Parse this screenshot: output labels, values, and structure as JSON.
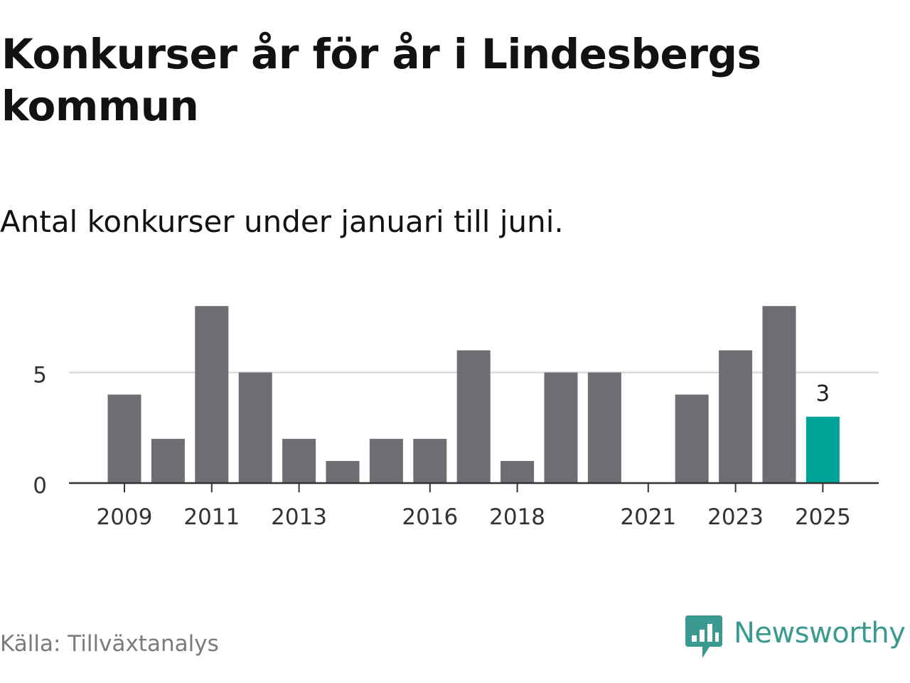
{
  "title": "Konkurser år för år i Lindesbergs kommun",
  "subtitle": "Antal konkurser under januari till juni.",
  "source": "Källa: Tillväxtanalys",
  "brand": {
    "name": "Newsworthy",
    "icon": "newsworthy-logo-icon",
    "color": "#3a9a8f"
  },
  "chart_data": {
    "type": "bar",
    "categories": [
      "2009",
      "2010",
      "2011",
      "2012",
      "2013",
      "2014",
      "2015",
      "2016",
      "2017",
      "2018",
      "2019",
      "2020",
      "2021",
      "2022",
      "2023",
      "2024",
      "2025"
    ],
    "values": [
      4,
      2,
      8,
      5,
      2,
      1,
      2,
      2,
      6,
      1,
      5,
      5,
      0,
      4,
      6,
      8,
      3
    ],
    "x_tick_labels": [
      "2009",
      "2011",
      "2013",
      "2016",
      "2018",
      "2021",
      "2023",
      "2025"
    ],
    "y_ticks": [
      0,
      5
    ],
    "ylim": [
      0,
      8
    ],
    "grid": true,
    "xlabel": "",
    "ylabel": "",
    "bar_color": "#6e6d73",
    "highlight_color": "#00a398",
    "highlight_category": "2025",
    "data_labels": [
      {
        "category": "2025",
        "text": "3"
      }
    ]
  }
}
